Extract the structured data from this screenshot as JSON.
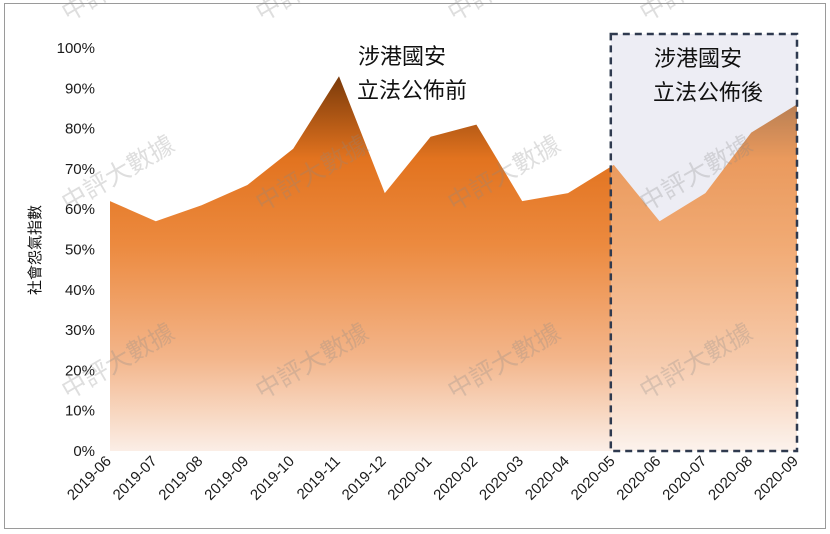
{
  "chart_data": {
    "type": "area",
    "ylabel": "社會怨氣指數",
    "categories": [
      "2019-06",
      "2019-07",
      "2019-08",
      "2019-09",
      "2019-10",
      "2019-11",
      "2019-12",
      "2020-01",
      "2020-02",
      "2020-03",
      "2020-04",
      "2020-05",
      "2020-06",
      "2020-07",
      "2020-08",
      "2020-09"
    ],
    "values": [
      62,
      57,
      61,
      66,
      75,
      93,
      64,
      78,
      81,
      62,
      64,
      71,
      57,
      64,
      79,
      86
    ],
    "ylim": [
      0,
      100
    ],
    "yticks": [
      "0%",
      "10%",
      "20%",
      "30%",
      "40%",
      "50%",
      "60%",
      "70%",
      "80%",
      "90%",
      "100%"
    ],
    "annotations": {
      "before": [
        "涉港國安",
        "立法公佈前"
      ],
      "after": [
        "涉港國安",
        "立法公佈後"
      ]
    },
    "highlight_range": [
      "2020-05",
      "2020-09"
    ],
    "watermark": "中評大數據",
    "colors": {
      "area_top": "#e2731f",
      "area_peak": "#7a3a0a",
      "area_bottom": "#fbeee6",
      "highlight_fill": "#e6e7f0",
      "highlight_border": "#2f3a4f"
    },
    "grid": false
  }
}
